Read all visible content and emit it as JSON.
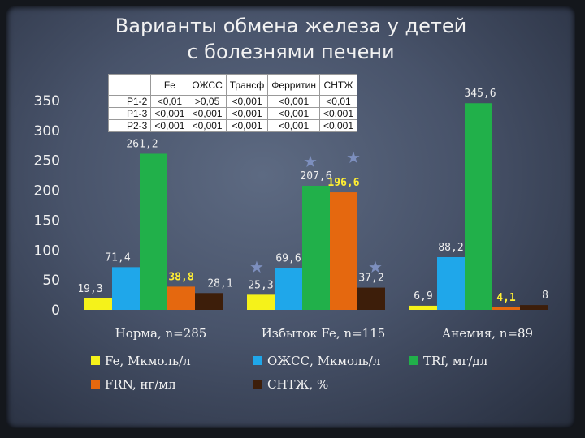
{
  "title_line1": "Варианты  обмена железа у детей",
  "title_line2": "с болезнями печени",
  "pvalue_table": {
    "columns": [
      "Fe",
      "ОЖСС",
      "Трансф",
      "Ферритин",
      "СНТЖ"
    ],
    "rows": [
      {
        "label": "P1-2",
        "values": [
          "<0,01",
          ">0,05",
          "<0,001",
          "<0,001",
          "<0,01"
        ]
      },
      {
        "label": "P1-3",
        "values": [
          "<0,001",
          "<0,001",
          "<0,001",
          "<0,001",
          "<0,001"
        ]
      },
      {
        "label": "P2-3",
        "values": [
          "<0,001",
          "<0,001",
          "<0,001",
          "<0,001",
          "<0,001"
        ]
      }
    ]
  },
  "chart_data": {
    "type": "bar",
    "categories": [
      "Норма, n=285",
      "Избыток Fe, n=115",
      "Анемия, n=89"
    ],
    "series": [
      {
        "name": "Fe, Мкмоль/л",
        "color": "#f5f21a",
        "values": [
          19.3,
          25.3,
          6.9
        ],
        "labels": [
          "19,3",
          "25,3",
          "6,9"
        ]
      },
      {
        "name": "ОЖСС, Мкмоль/л",
        "color": "#1fa7ea",
        "values": [
          71.4,
          69.6,
          88.2
        ],
        "labels": [
          "71,4",
          "69,6",
          "88,2"
        ]
      },
      {
        "name": "TRf, мг/дл",
        "color": "#21b04a",
        "values": [
          261.2,
          207.6,
          345.6
        ],
        "labels": [
          "261,2",
          "207,6",
          "345,6"
        ]
      },
      {
        "name": "FRN, нг/мл",
        "color": "#e5680f",
        "values": [
          38.8,
          196.6,
          4.1
        ],
        "labels": [
          "38,8",
          "196,6",
          "4,1"
        ]
      },
      {
        "name": "СНТЖ, %",
        "color": "#3d1e0a",
        "values": [
          28.1,
          37.2,
          8
        ],
        "labels": [
          "28,1",
          "37,2",
          "8"
        ]
      }
    ],
    "ylim": [
      0,
      350
    ],
    "yticks": [
      0,
      50,
      100,
      150,
      200,
      250,
      300,
      350
    ],
    "grid": false,
    "legend_position": "bottom",
    "annotations": [
      "★"
    ]
  }
}
